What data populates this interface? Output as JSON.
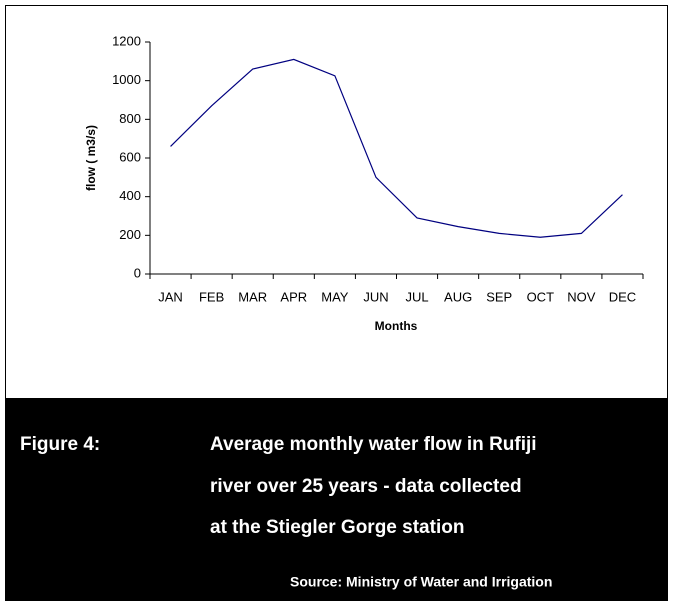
{
  "chart_data": {
    "type": "line",
    "categories": [
      "JAN",
      "FEB",
      "MAR",
      "APR",
      "MAY",
      "JUN",
      "JUL",
      "AUG",
      "SEP",
      "OCT",
      "NOV",
      "DEC"
    ],
    "series": [
      {
        "name": "flow",
        "color": "#000080",
        "values": [
          660,
          870,
          1060,
          1110,
          1025,
          500,
          290,
          245,
          210,
          190,
          210,
          410
        ]
      }
    ],
    "ylim": [
      0,
      1200
    ],
    "yticks": [
      0,
      200,
      400,
      600,
      800,
      1000,
      1200
    ],
    "y_label": "flow ( m3/s)",
    "x_label": "Months",
    "figure_label": "Figure 4:",
    "caption": [
      "Average monthly water flow in Rufiji",
      "river  over 25 years - data collected",
      "at the Stiegler Gorge station"
    ],
    "source": "Source: Ministry of Water and Irrigation"
  }
}
